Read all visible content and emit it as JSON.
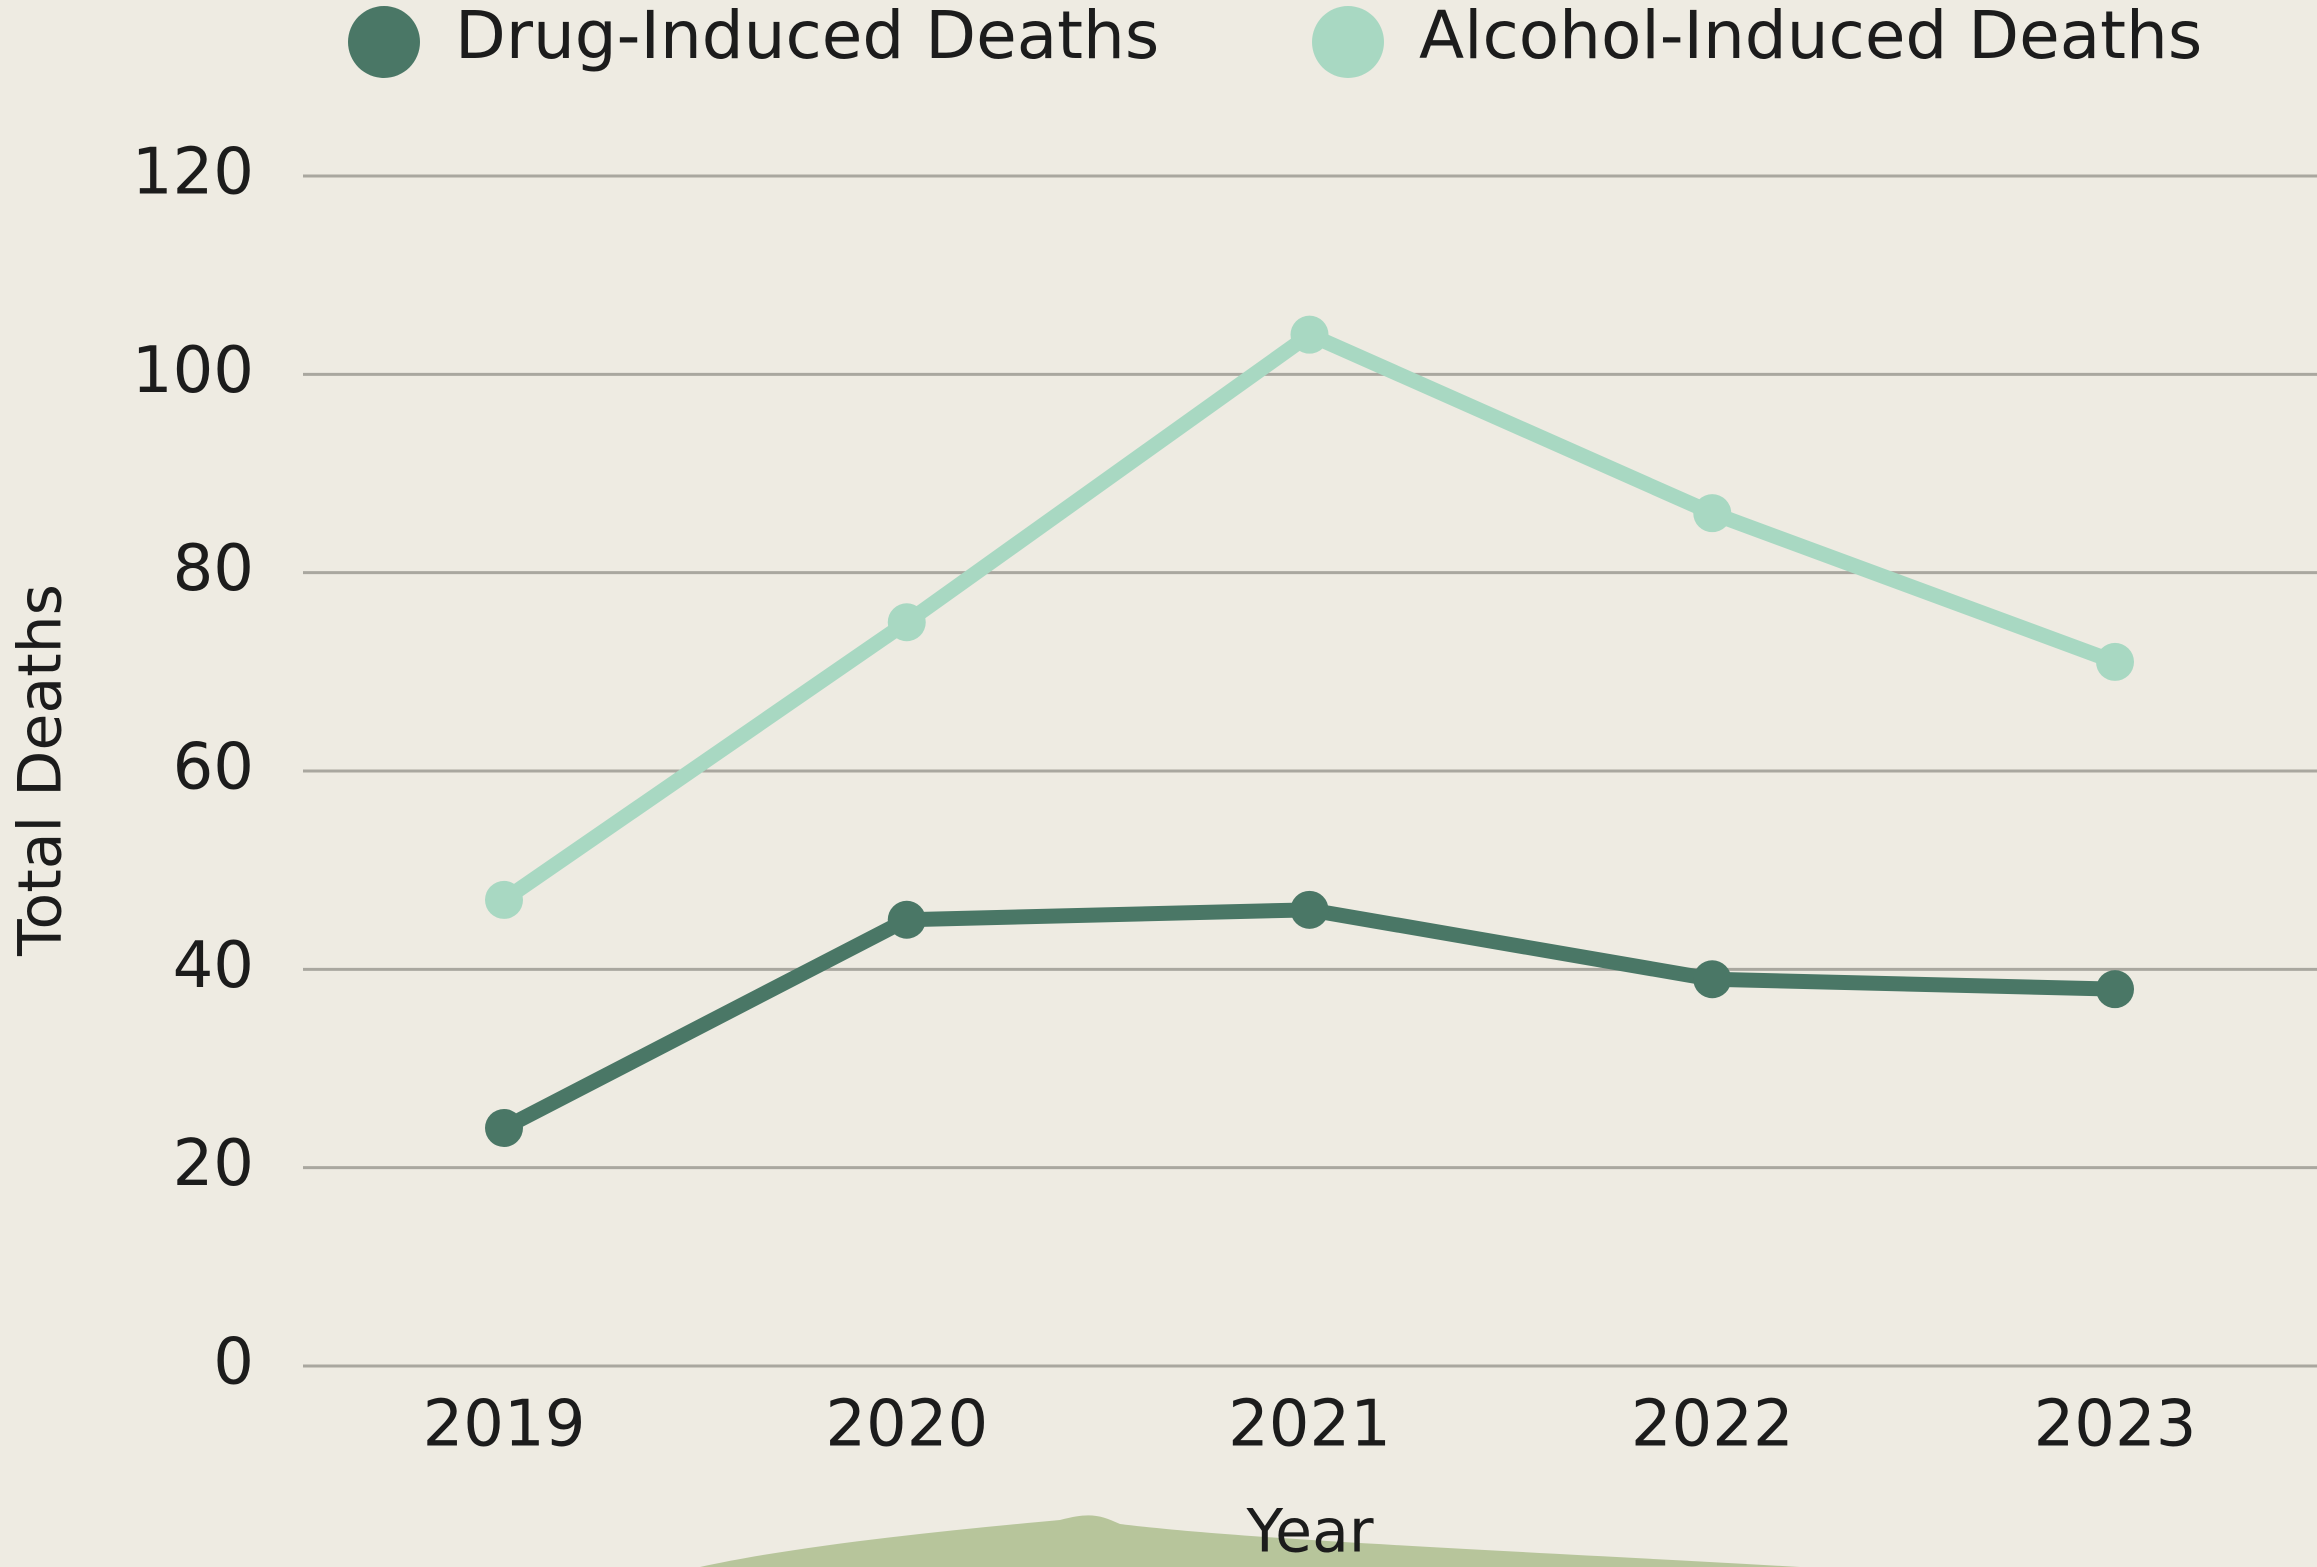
{
  "chart_data": {
    "type": "line",
    "categories": [
      "2019",
      "2020",
      "2021",
      "2022",
      "2023"
    ],
    "series": [
      {
        "name": "Drug-Induced Deaths",
        "color": "#4a7766",
        "values": [
          24,
          45,
          46,
          39,
          38
        ]
      },
      {
        "name": "Alcohol-Induced Deaths",
        "color": "#a8d8c2",
        "values": [
          47,
          75,
          104,
          86,
          71
        ]
      }
    ],
    "xlabel": "Year",
    "ylabel": "Total Deaths",
    "ylim": [
      0,
      120
    ],
    "yticks": [
      0,
      20,
      40,
      60,
      80,
      100,
      120
    ],
    "grid": true,
    "legend": "top"
  }
}
